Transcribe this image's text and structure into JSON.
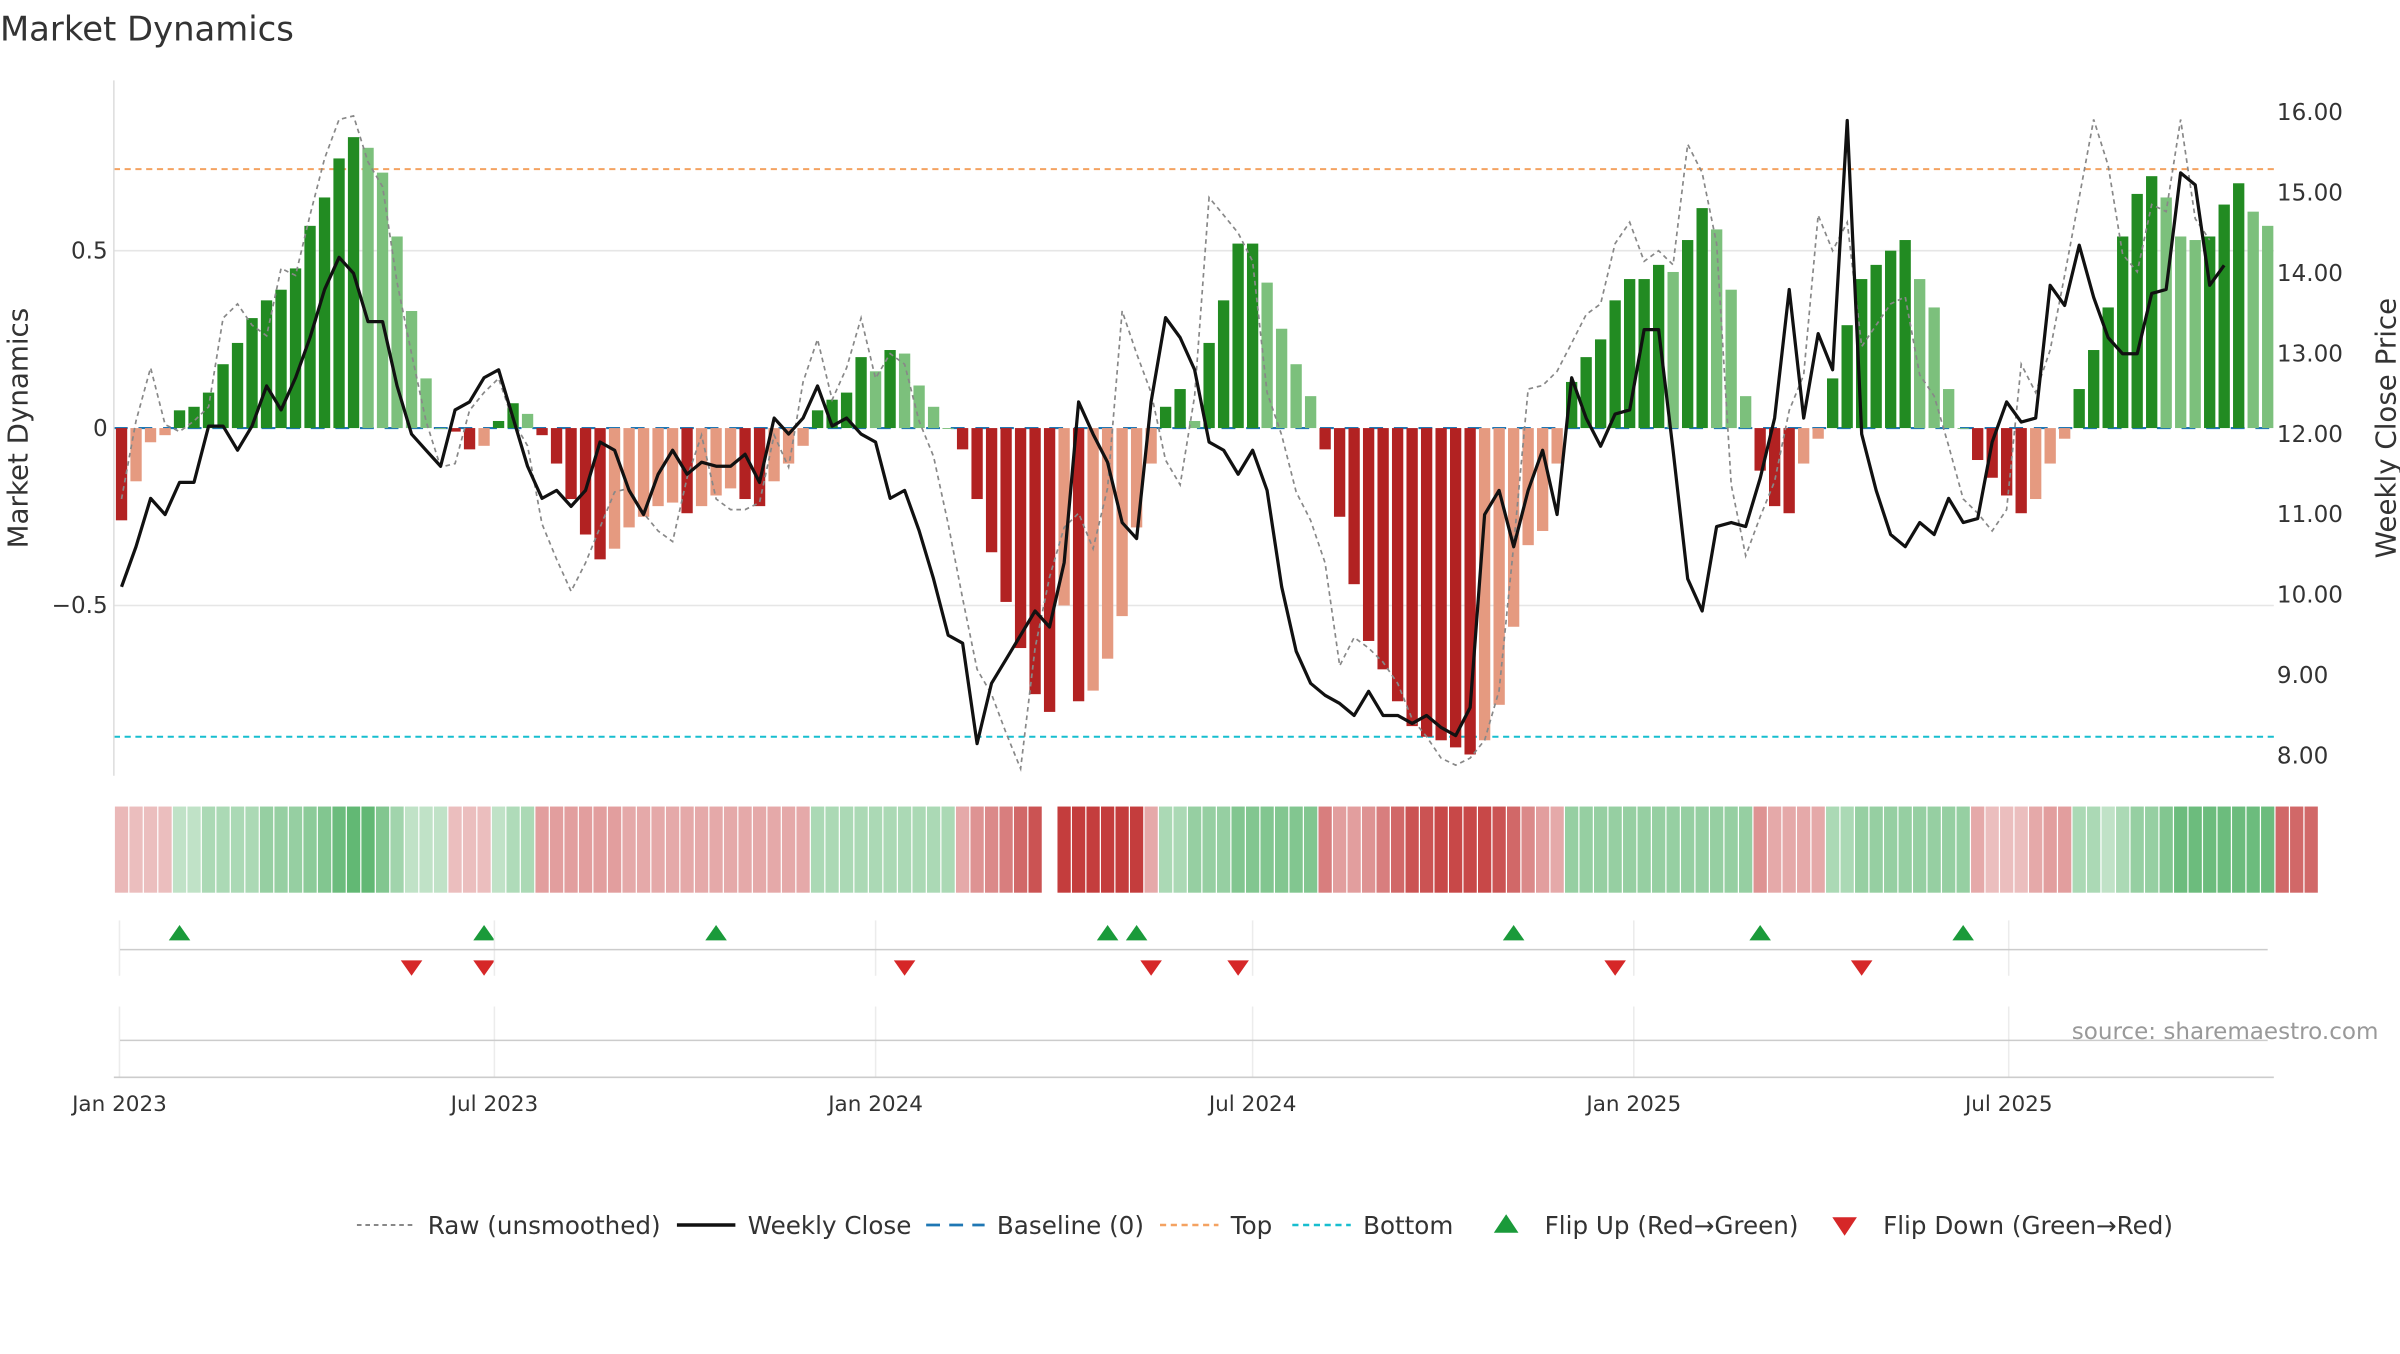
{
  "title": "Market Dynamics",
  "source": "source: sharemaestro.com",
  "legend": [
    {
      "label": "Raw (unsmoothed)",
      "kind": "raw"
    },
    {
      "label": "Weekly Close",
      "kind": "close"
    },
    {
      "label": "Baseline (0)",
      "kind": "baseline"
    },
    {
      "label": "Top",
      "kind": "top"
    },
    {
      "label": "Bottom",
      "kind": "bottom"
    },
    {
      "label": "Flip Up (Red→Green)",
      "kind": "flipup"
    },
    {
      "label": "Flip Down (Green→Red)",
      "kind": "flipdown"
    }
  ],
  "colors": {
    "green_dark": "#228b22",
    "green_light": "#7cc07c",
    "red_dark": "#b22222",
    "red_light": "#e59a80",
    "close_line": "#111111",
    "raw_line": "#888888",
    "baseline": "#1f77b4",
    "top_line": "#f4a261",
    "bottom_line": "#17becf",
    "flip_up": "#1a9a3a",
    "flip_down": "#d62728"
  },
  "chart_data": {
    "type": "bar",
    "start_date": "2023-01-02",
    "interval_days": 7,
    "ylabel": "Market Dynamics",
    "y2label": "Weekly Close Price",
    "ylim": [
      -0.98,
      0.98
    ],
    "y2lim": [
      7.75,
      16.4
    ],
    "yticks": [
      {
        "v": 0.5,
        "label": "0.5"
      },
      {
        "v": 0,
        "label": "0"
      },
      {
        "v": -0.5,
        "label": "−0.5"
      }
    ],
    "y2ticks": [
      "8.00",
      "9.00",
      "10.00",
      "11.00",
      "12.00",
      "13.00",
      "14.00",
      "15.00",
      "16.00"
    ],
    "x_ticks": [
      {
        "date": "2023-01-01",
        "label": "Jan 2023"
      },
      {
        "date": "2023-07-01",
        "label": "Jul 2023"
      },
      {
        "date": "2024-01-01",
        "label": "Jan 2024"
      },
      {
        "date": "2024-07-01",
        "label": "Jul 2024"
      },
      {
        "date": "2025-01-01",
        "label": "Jan 2025"
      },
      {
        "date": "2025-07-01",
        "label": "Jul 2025"
      }
    ],
    "top": 0.73,
    "bottom": -0.87,
    "baseline": 0,
    "grid": true,
    "legend_position": "bottom",
    "dynamics": [
      -0.26,
      -0.15,
      -0.04,
      -0.02,
      0.05,
      0.06,
      0.1,
      0.18,
      0.24,
      0.31,
      0.36,
      0.39,
      0.45,
      0.57,
      0.65,
      0.76,
      0.82,
      0.79,
      0.72,
      0.54,
      0.33,
      0.14,
      0,
      -0.01,
      -0.06,
      -0.05,
      0.02,
      0.07,
      0.04,
      -0.02,
      -0.1,
      -0.2,
      -0.3,
      -0.37,
      -0.34,
      -0.28,
      -0.25,
      -0.22,
      -0.21,
      -0.24,
      -0.22,
      -0.19,
      -0.17,
      -0.2,
      -0.22,
      -0.15,
      -0.1,
      -0.05,
      0.05,
      0.08,
      0.1,
      0.2,
      0.16,
      0.22,
      0.21,
      0.12,
      0.06,
      0,
      -0.06,
      -0.2,
      -0.35,
      -0.49,
      -0.62,
      -0.75,
      -0.8,
      -0.5,
      -0.77,
      -0.74,
      -0.65,
      -0.53,
      -0.28,
      -0.1,
      0.06,
      0.11,
      0.02,
      0.24,
      0.36,
      0.52,
      0.52,
      0.41,
      0.28,
      0.18,
      0.09,
      -0.06,
      -0.25,
      -0.44,
      -0.6,
      -0.68,
      -0.77,
      -0.84,
      -0.87,
      -0.88,
      -0.9,
      -0.92,
      -0.88,
      -0.78,
      -0.56,
      -0.33,
      -0.29,
      -0.1,
      0.13,
      0.2,
      0.25,
      0.36,
      0.42,
      0.42,
      0.46,
      0.44,
      0.53,
      0.62,
      0.56,
      0.39,
      0.09,
      -0.12,
      -0.22,
      -0.24,
      -0.1,
      -0.03,
      0.14,
      0.29,
      0.42,
      0.46,
      0.5,
      0.53,
      0.42,
      0.34,
      0.11,
      0,
      -0.09,
      -0.14,
      -0.19,
      -0.24,
      -0.2,
      -0.1,
      -0.03,
      0.11,
      0.22,
      0.34,
      0.54,
      0.66,
      0.71,
      0.65,
      0.54,
      0.53,
      0.54,
      0.63,
      0.69,
      0.61,
      0.57
    ],
    "raw": [
      -0.2,
      0.02,
      0.17,
      0.01,
      -0.01,
      0.02,
      0.06,
      0.31,
      0.35,
      0.29,
      0.26,
      0.45,
      0.43,
      0.6,
      0.76,
      0.87,
      0.88,
      0.75,
      0.68,
      0.41,
      0.21,
      0.02,
      -0.11,
      -0.1,
      0.05,
      0.1,
      0.14,
      0.02,
      -0.05,
      -0.27,
      -0.37,
      -0.46,
      -0.38,
      -0.28,
      -0.18,
      -0.17,
      -0.24,
      -0.29,
      -0.32,
      -0.14,
      -0.02,
      -0.2,
      -0.23,
      -0.23,
      -0.21,
      -0.02,
      -0.11,
      0.13,
      0.25,
      0.08,
      0.17,
      0.31,
      0.14,
      0.21,
      0.18,
      0.02,
      -0.08,
      -0.27,
      -0.48,
      -0.68,
      -0.75,
      -0.86,
      -0.96,
      -0.62,
      -0.42,
      -0.28,
      -0.24,
      -0.34,
      -0.17,
      0.33,
      0.21,
      0.1,
      -0.09,
      -0.16,
      0.09,
      0.65,
      0.6,
      0.55,
      0.47,
      0.1,
      -0.02,
      -0.18,
      -0.26,
      -0.38,
      -0.67,
      -0.59,
      -0.62,
      -0.66,
      -0.72,
      -0.82,
      -0.87,
      -0.93,
      -0.95,
      -0.93,
      -0.88,
      -0.74,
      -0.33,
      0.11,
      0.12,
      0.16,
      0.24,
      0.32,
      0.35,
      0.52,
      0.58,
      0.47,
      0.5,
      0.46,
      0.8,
      0.72,
      0.52,
      -0.16,
      -0.36,
      -0.25,
      -0.15,
      0.05,
      0.15,
      0.6,
      0.5,
      0.58,
      0.23,
      0.29,
      0.35,
      0.37,
      0.15,
      0.09,
      -0.05,
      -0.2,
      -0.24,
      -0.29,
      -0.23,
      0.18,
      0.1,
      0.22,
      0.43,
      0.65,
      0.87,
      0.74,
      0.49,
      0.44,
      0.63,
      0.61,
      0.87,
      0.59,
      0.53
    ],
    "close": [
      10.1,
      10.6,
      11.2,
      11,
      11.4,
      11.4,
      12.1,
      12.1,
      11.8,
      12.1,
      12.6,
      12.3,
      12.7,
      13.2,
      13.8,
      14.2,
      14,
      13.4,
      13.4,
      12.6,
      12,
      11.8,
      11.6,
      12.3,
      12.4,
      12.7,
      12.8,
      12.2,
      11.6,
      11.2,
      11.3,
      11.1,
      11.3,
      11.9,
      11.8,
      11.3,
      11,
      11.5,
      11.8,
      11.5,
      11.65,
      11.6,
      11.6,
      11.75,
      11.4,
      12.2,
      12.0,
      12.2,
      12.6,
      12.1,
      12.2,
      12,
      11.9,
      11.2,
      11.3,
      10.8,
      10.2,
      9.5,
      9.4,
      8.15,
      8.9,
      9.2,
      9.5,
      9.8,
      9.6,
      10.4,
      12.4,
      12,
      11.65,
      10.9,
      10.7,
      12.4,
      13.45,
      13.2,
      12.8,
      11.9,
      11.8,
      11.5,
      11.8,
      11.3,
      10.1,
      9.3,
      8.9,
      8.75,
      8.65,
      8.5,
      8.8,
      8.5,
      8.5,
      8.4,
      8.5,
      8.35,
      8.25,
      8.6,
      11,
      11.3,
      10.6,
      11.3,
      11.8,
      11.0,
      12.7,
      12.2,
      11.85,
      12.25,
      12.3,
      13.3,
      13.3,
      11.8,
      10.2,
      9.8,
      10.85,
      10.9,
      10.85,
      11.45,
      12.2,
      13.8,
      12.2,
      13.25,
      12.8,
      15.9,
      12,
      11.3,
      10.75,
      10.6,
      10.9,
      10.75,
      11.2,
      10.9,
      10.95,
      11.9,
      12.4,
      12.15,
      12.2,
      13.85,
      13.6,
      14.35,
      13.7,
      13.2,
      13,
      13,
      13.75,
      13.8,
      15.25,
      15.1,
      13.85,
      14.1
    ],
    "strip_shades": [
      0.33,
      0.3,
      0.3,
      0.3,
      0.3,
      0.3,
      0.4,
      0.4,
      0.4,
      0.4,
      0.5,
      0.5,
      0.5,
      0.55,
      0.6,
      0.7,
      0.75,
      0.75,
      0.6,
      0.45,
      0.3,
      0.3,
      0.3,
      0.3,
      0.3,
      0.3,
      0.3,
      0.38,
      0.4,
      0.45,
      0.45,
      0.45,
      0.45,
      0.45,
      0.45,
      0.4,
      0.4,
      0.4,
      0.4,
      0.4,
      0.4,
      0.4,
      0.4,
      0.4,
      0.4,
      0.4,
      0.4,
      0.4,
      0.4,
      0.4,
      0.4,
      0.4,
      0.4,
      0.4,
      0.4,
      0.4,
      0.4,
      0.4,
      0.4,
      0.5,
      0.55,
      0.6,
      0.7,
      0.8,
      -1,
      0.9,
      0.9,
      0.9,
      0.9,
      0.9,
      0.9,
      0.4,
      0.4,
      0.4,
      0.5,
      0.5,
      0.5,
      0.6,
      0.6,
      0.6,
      0.6,
      0.6,
      0.6,
      0.6,
      0.45,
      0.45,
      0.5,
      0.6,
      0.7,
      0.8,
      0.8,
      0.85,
      0.85,
      0.85,
      0.85,
      0.8,
      0.7,
      0.55,
      0.45,
      0.4,
      0.5,
      0.5,
      0.5,
      0.5,
      0.5,
      0.5,
      0.5,
      0.5,
      0.5,
      0.5,
      0.5,
      0.5,
      0.5,
      0.5,
      0.4,
      0.4,
      0.4,
      0.4,
      0.4,
      0.4,
      0.5,
      0.5,
      0.5,
      0.5,
      0.5,
      0.5,
      0.5,
      0.5,
      0.4,
      0.3,
      0.3,
      0.3,
      0.4,
      0.45,
      0.45,
      0.4,
      0.4,
      0.3,
      0.4,
      0.5,
      0.5,
      0.6,
      0.7,
      0.7,
      0.7,
      0.7,
      0.7,
      0.7,
      0.7,
      0.7,
      0.7,
      0.7
    ],
    "flips_up": [
      "2023-01-30",
      "2023-06-26",
      "2023-10-16",
      "2024-04-22",
      "2024-05-06",
      "2024-11-04",
      "2025-03-03",
      "2025-06-09"
    ],
    "flips_down": [
      "2023-05-22",
      "2023-06-26",
      "2024-01-15",
      "2024-05-13",
      "2024-06-24",
      "2024-12-23",
      "2025-04-21"
    ]
  }
}
